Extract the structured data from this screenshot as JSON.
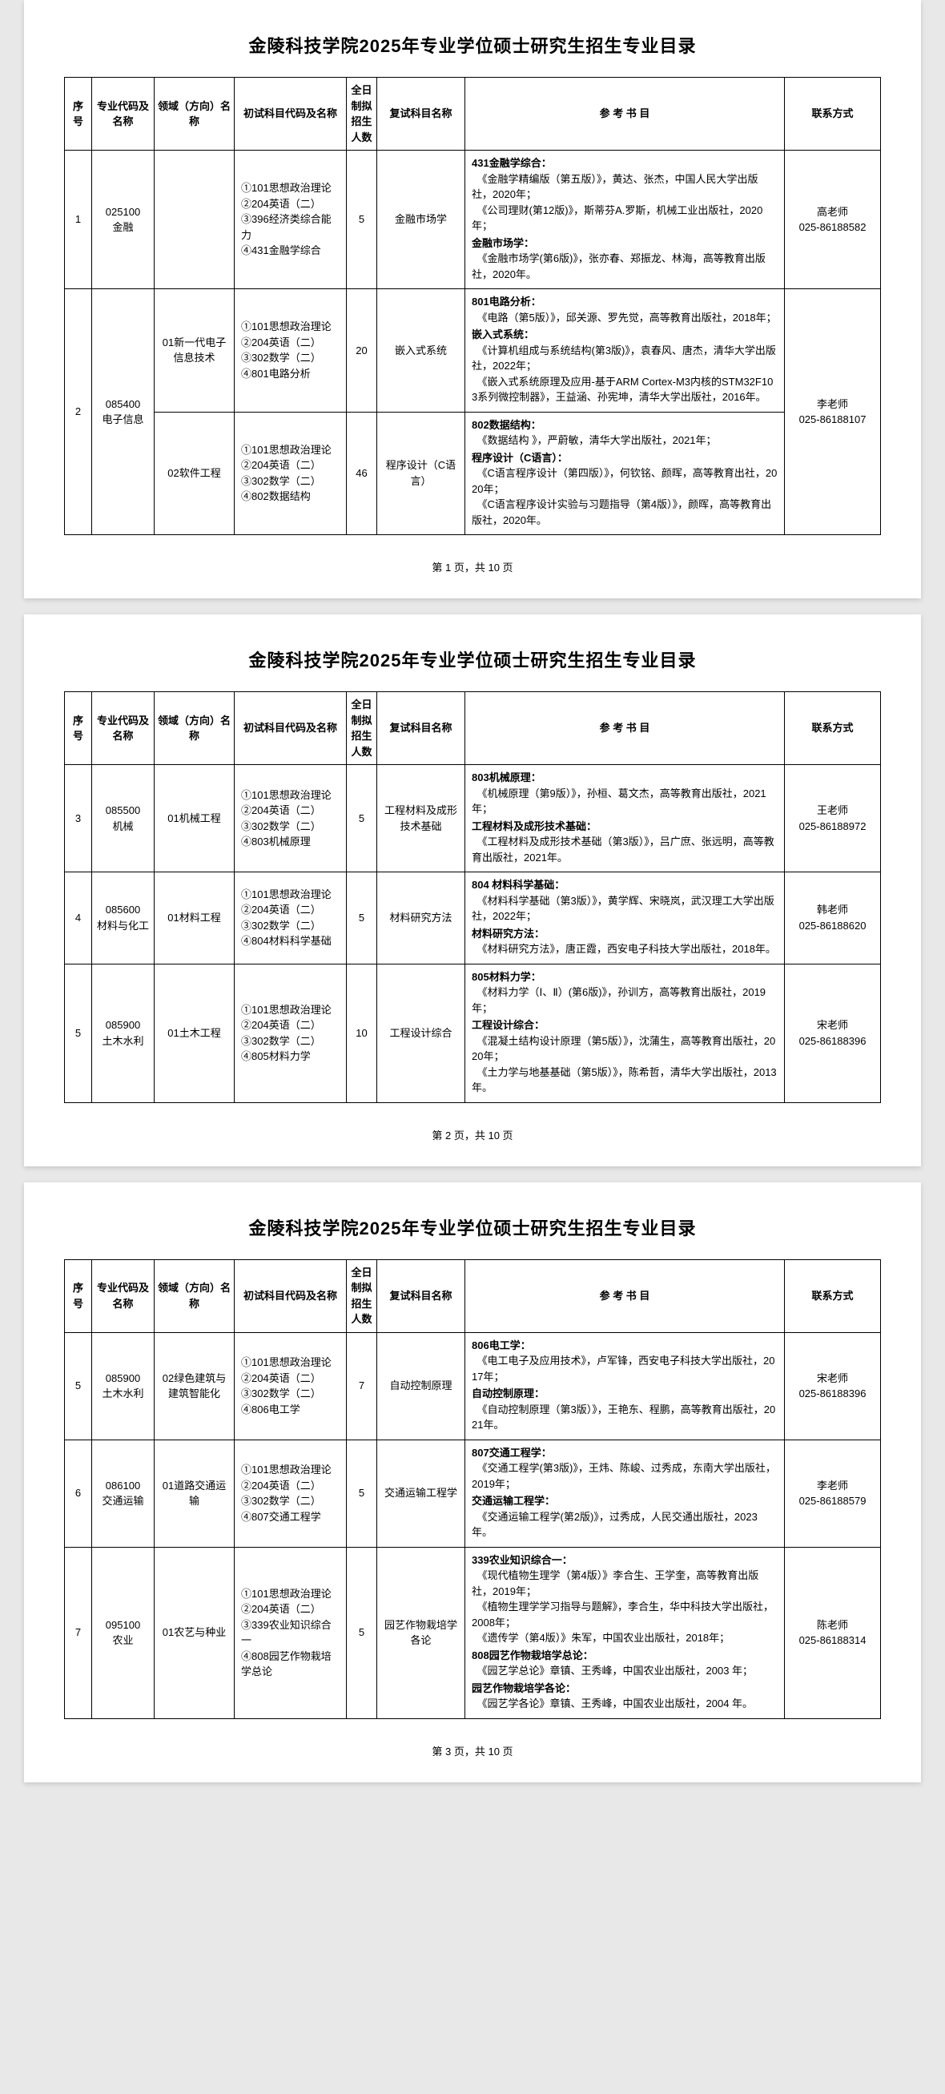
{
  "title": "金陵科技学院2025年专业学位硕士研究生招生专业目录",
  "headers": {
    "seq": "序号",
    "code": "专业代码及名称",
    "field": "领域（方向）名称",
    "exam": "初试科目代码及名称",
    "num": "全日制拟招生人数",
    "reexam": "复试科目名称",
    "books": "参 考 书 目",
    "contact": "联系方式"
  },
  "pagination": {
    "p1": "第 1 页，共 10 页",
    "p2": "第 2 页，共 10 页",
    "p3": "第 3 页，共 10 页"
  },
  "rows": [
    {
      "seq": "1",
      "code": "025100\n金融",
      "field": "",
      "exam": "①101思想政治理论\n②204英语（二）\n③396经济类综合能力\n④431金融学综合",
      "num": "5",
      "reexam": "金融市场学",
      "books": [
        {
          "t": "431金融学综合：",
          "c": "　《金融学精编版（第五版）》，黄达、张杰，中国人民大学出版社，2020年；\n　《公司理财(第12版)》，斯蒂芬A.罗斯，机械工业出版社，2020年；"
        },
        {
          "t": "金融市场学：",
          "c": "　《金融市场学(第6版)》，张亦春、郑振龙、林海，高等教育出版社，2020年。"
        }
      ],
      "contact": "高老师\n025-86188582"
    },
    {
      "seq": "2",
      "code": "085400\n电子信息",
      "rowspan_code": 2,
      "field": "01新一代电子信息技术",
      "exam": "①101思想政治理论\n②204英语（二）\n③302数学（二）\n④801电路分析",
      "num": "20",
      "reexam": "嵌入式系统",
      "books": [
        {
          "t": "801电路分析：",
          "c": "　《电路（第5版）》，邱关源、罗先觉，高等教育出版社，2018年；"
        },
        {
          "t": "嵌入式系统：",
          "c": "　《计算机组成与系统结构(第3版)》，袁春风、唐杰，清华大学出版社，2022年；\n　《嵌入式系统原理及应用-基于ARM Cortex-M3内核的STM32F103系列微控制器》，王益涵、孙宪坤，清华大学出版社，2016年。"
        }
      ],
      "contact": "李老师\n025-86188107",
      "rowspan_contact": 2
    },
    {
      "field": "02软件工程",
      "exam": "①101思想政治理论\n②204英语（二）\n③302数学（二）\n④802数据结构",
      "num": "46",
      "reexam": "程序设计（C语言）",
      "books": [
        {
          "t": "802数据结构：",
          "c": "　《数据结构 》，严蔚敏，清华大学出版社，2021年；"
        },
        {
          "t": "程序设计（C语言）：",
          "c": "　《C语言程序设计（第四版）》，何钦铭、颜晖，高等教育出社，2020年；\n　《C语言程序设计实验与习题指导（第4版）》，颜晖，高等教育出版社，2020年。"
        }
      ]
    },
    {
      "seq": "3",
      "code": "085500\n机械",
      "field": "01机械工程",
      "exam": "①101思想政治理论\n②204英语（二）\n③302数学（二）\n④803机械原理",
      "num": "5",
      "reexam": "工程材料及成形技术基础",
      "books": [
        {
          "t": "803机械原理：",
          "c": "　《机械原理（第9版）》，孙桓、葛文杰，高等教育出版社，2021年；"
        },
        {
          "t": "工程材料及成形技术基础：",
          "c": "　《工程材料及成形技术基础（第3版）》，吕广庶、张远明，高等教育出版社，2021年。"
        }
      ],
      "contact": "王老师\n025-86188972"
    },
    {
      "seq": "4",
      "code": "085600\n材料与化工",
      "field": "01材料工程",
      "exam": "①101思想政治理论\n②204英语（二）\n③302数学（二）\n④804材料科学基础",
      "num": "5",
      "reexam": "材料研究方法",
      "books": [
        {
          "t": "804 材料科学基础：",
          "c": "　《材料科学基础（第3版）》，黄学辉、宋晓岚，武汉理工大学出版社，2022年；"
        },
        {
          "t": "材料研究方法：",
          "c": "　《材料研究方法》，唐正霞，西安电子科技大学出版社，2018年。"
        }
      ],
      "contact": "韩老师\n025-86188620"
    },
    {
      "seq": "5",
      "code": "085900\n土木水利",
      "field": "01土木工程",
      "exam": "①101思想政治理论\n②204英语（二）\n③302数学（二）\n④805材料力学",
      "num": "10",
      "reexam": "工程设计综合",
      "books": [
        {
          "t": "805材料力学：",
          "c": "　《材料力学（Ⅰ、Ⅱ）(第6版)》，孙训方，高等教育出版社，2019年；"
        },
        {
          "t": "工程设计综合：",
          "c": "　《混凝土结构设计原理（第5版）》，沈蒲生，高等教育出版社，2020年；\n　《土力学与地基基础（第5版）》，陈希哲，清华大学出版社，2013年。"
        }
      ],
      "contact": "宋老师\n025-86188396"
    },
    {
      "seq": "5",
      "code": "085900\n土木水利",
      "field": "02绿色建筑与建筑智能化",
      "exam": "①101思想政治理论\n②204英语（二）\n③302数学（二）\n④806电工学",
      "num": "7",
      "reexam": "自动控制原理",
      "books": [
        {
          "t": "806电工学：",
          "c": "　《电工电子及应用技术》，卢军锋，西安电子科技大学出版社，2017年；"
        },
        {
          "t": "自动控制原理：",
          "c": "　《自动控制原理（第3版）》，王艳东、程鹏，高等教育出版社，2021年。"
        }
      ],
      "contact": "宋老师\n025-86188396"
    },
    {
      "seq": "6",
      "code": "086100\n交通运输",
      "field": "01道路交通运输",
      "exam": "①101思想政治理论\n②204英语（二）\n③302数学（二）\n④807交通工程学",
      "num": "5",
      "reexam": "交通运输工程学",
      "books": [
        {
          "t": "807交通工程学：",
          "c": "　《交通工程学(第3版)》，王炜、陈峻、过秀成，东南大学出版社，2019年；"
        },
        {
          "t": "交通运输工程学：",
          "c": "　《交通运输工程学(第2版)》，过秀成，人民交通出版社，2023年。"
        }
      ],
      "contact": "李老师\n025-86188579"
    },
    {
      "seq": "7",
      "code": "095100\n农业",
      "field": "01农艺与种业",
      "exam": "①101思想政治理论\n②204英语（二）\n③339农业知识综合一\n④808园艺作物栽培学总论",
      "num": "5",
      "reexam": "园艺作物栽培学各论",
      "books": [
        {
          "t": "339农业知识综合一：",
          "c": "　《现代植物生理学（第4版）》李合生、王学奎，高等教育出版社，2019年；\n　《植物生理学学习指导与题解》，李合生，华中科技大学出版社，2008年；\n　《遗传学（第4版）》朱军，中国农业出版社，2018年；"
        },
        {
          "t": "808园艺作物栽培学总论：",
          "c": "　《园艺学总论》章镇、王秀峰，中国农业出版社，2003 年；"
        },
        {
          "t": "园艺作物栽培学各论：",
          "c": "　《园艺学各论》章镇、王秀峰，中国农业出版社，2004 年。"
        }
      ],
      "contact": "陈老师\n025-86188314"
    }
  ]
}
